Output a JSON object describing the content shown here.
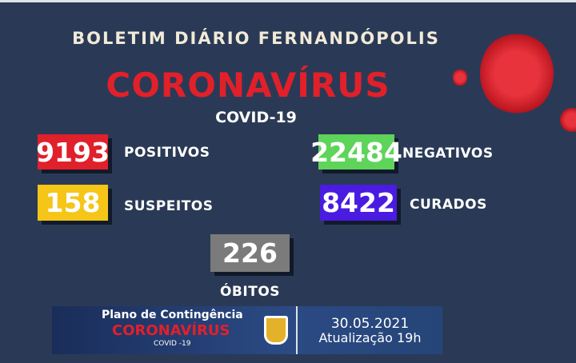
{
  "header": {
    "title": "BOLETIM DIÁRIO FERNANDÓPOLIS",
    "headline": "CORONAVÍRUS",
    "subtitle": "COVID-19"
  },
  "stats": {
    "positivos": {
      "value": "9193",
      "label": "POSITIVOS",
      "color": "#e0202a"
    },
    "suspeitos": {
      "value": "158",
      "label": "SUSPEITOS",
      "color": "#f5c518"
    },
    "negativos": {
      "value": "22484",
      "label": "NEGATIVOS",
      "color": "#5fd45a"
    },
    "curados": {
      "value": "8422",
      "label": "CURADOS",
      "color": "#4a1be0"
    },
    "obitos": {
      "value": "226",
      "label": "ÓBITOS",
      "color": "#7b7b7b"
    }
  },
  "banner": {
    "line1": "Plano de Contingência",
    "line2": "CORONAVÍRUS",
    "line3": "COVID -19",
    "date": "30.05.2021",
    "update": "Atualização 19h"
  },
  "icons": [
    "coronavirus-icon",
    "city-coat-of-arms-icon"
  ]
}
